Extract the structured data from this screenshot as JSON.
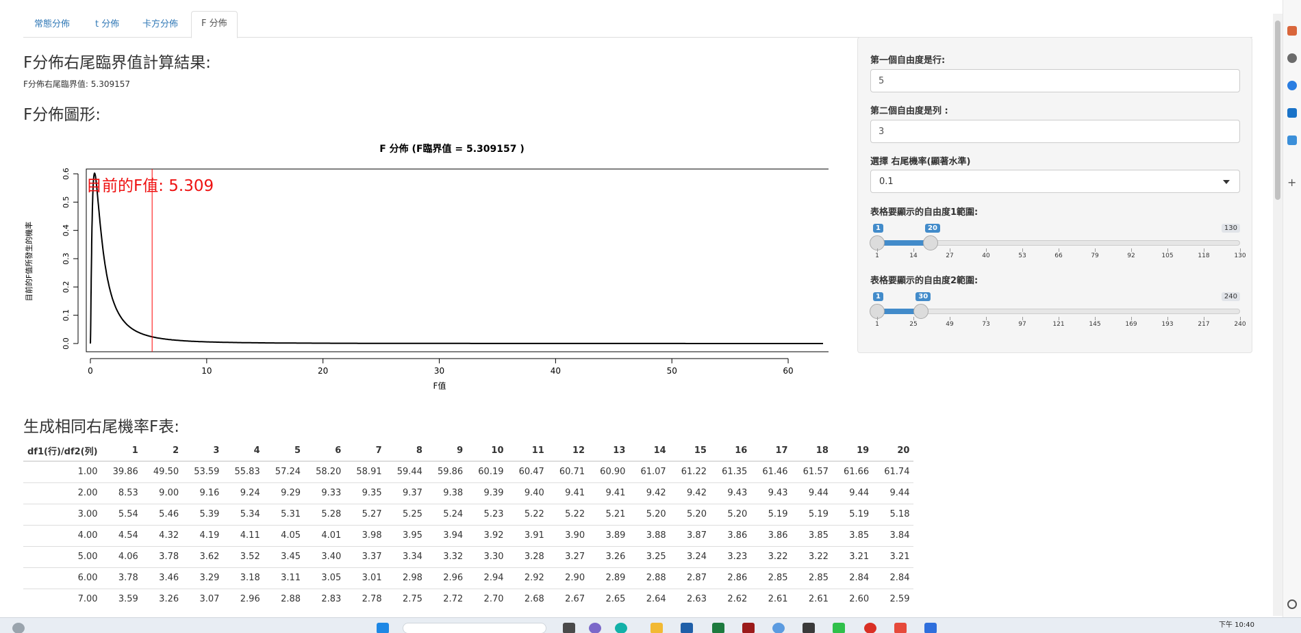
{
  "tabs": [
    {
      "label": "常態分佈"
    },
    {
      "label": "t 分佈"
    },
    {
      "label": "卡方分佈"
    },
    {
      "label": "F 分佈"
    }
  ],
  "result": {
    "heading": "F分佈右尾臨界值計算結果:",
    "text": "F分佈右尾臨界值: 5.309157"
  },
  "plot_heading": "F分佈圖形:",
  "chart_data": {
    "type": "line",
    "title": "F 分佈 (F臨界值 = 5.309157 )",
    "xlabel": "F值",
    "ylabel": "目前的F值所發生的機率",
    "annotation": "目前的F值: 5.309",
    "critical_value": 5.309157,
    "df1": 5,
    "df2": 3,
    "xlim": [
      0,
      63
    ],
    "ylim": [
      0,
      0.6
    ],
    "x_ticks": [
      0,
      10,
      20,
      30,
      40,
      50,
      60
    ],
    "y_ticks": [
      0.0,
      0.1,
      0.2,
      0.3,
      0.4,
      0.5,
      0.6
    ],
    "curve_color": "#000000",
    "critical_line_color": "#ff0000",
    "grid": false
  },
  "table_heading": "生成相同右尾機率F表:",
  "sidebar": {
    "df1_label": "第一個自由度是行:",
    "df1_value": "5",
    "df2_label": "第二個自由度是列 :",
    "df2_value": "3",
    "prob_label": "選擇 右尾機率(顯著水準)",
    "prob_value": "0.1",
    "range1_label": "表格要顯示的自由度1範圍:",
    "range1": {
      "min": 1,
      "max": 130,
      "from": 1,
      "to": 20,
      "ticks": [
        "1",
        "14",
        "27",
        "40",
        "53",
        "66",
        "79",
        "92",
        "105",
        "118",
        "130"
      ]
    },
    "range2_label": "表格要顯示的自由度2範圍:",
    "range2": {
      "min": 1,
      "max": 240,
      "from": 1,
      "to": 30,
      "ticks": [
        "1",
        "25",
        "49",
        "73",
        "97",
        "121",
        "145",
        "169",
        "193",
        "217",
        "240"
      ]
    }
  },
  "table": {
    "corner_header": "df1(行)/df2(列)",
    "col_headers": [
      "1",
      "2",
      "3",
      "4",
      "5",
      "6",
      "7",
      "8",
      "9",
      "10",
      "11",
      "12",
      "13",
      "14",
      "15",
      "16",
      "17",
      "18",
      "19",
      "20"
    ],
    "rows": [
      {
        "label": "1.00",
        "cells": [
          "39.86",
          "49.50",
          "53.59",
          "55.83",
          "57.24",
          "58.20",
          "58.91",
          "59.44",
          "59.86",
          "60.19",
          "60.47",
          "60.71",
          "60.90",
          "61.07",
          "61.22",
          "61.35",
          "61.46",
          "61.57",
          "61.66",
          "61.74"
        ]
      },
      {
        "label": "2.00",
        "cells": [
          "8.53",
          "9.00",
          "9.16",
          "9.24",
          "9.29",
          "9.33",
          "9.35",
          "9.37",
          "9.38",
          "9.39",
          "9.40",
          "9.41",
          "9.41",
          "9.42",
          "9.42",
          "9.43",
          "9.43",
          "9.44",
          "9.44",
          "9.44"
        ]
      },
      {
        "label": "3.00",
        "cells": [
          "5.54",
          "5.46",
          "5.39",
          "5.34",
          "5.31",
          "5.28",
          "5.27",
          "5.25",
          "5.24",
          "5.23",
          "5.22",
          "5.22",
          "5.21",
          "5.20",
          "5.20",
          "5.20",
          "5.19",
          "5.19",
          "5.19",
          "5.18"
        ]
      },
      {
        "label": "4.00",
        "cells": [
          "4.54",
          "4.32",
          "4.19",
          "4.11",
          "4.05",
          "4.01",
          "3.98",
          "3.95",
          "3.94",
          "3.92",
          "3.91",
          "3.90",
          "3.89",
          "3.88",
          "3.87",
          "3.86",
          "3.86",
          "3.85",
          "3.85",
          "3.84"
        ]
      },
      {
        "label": "5.00",
        "cells": [
          "4.06",
          "3.78",
          "3.62",
          "3.52",
          "3.45",
          "3.40",
          "3.37",
          "3.34",
          "3.32",
          "3.30",
          "3.28",
          "3.27",
          "3.26",
          "3.25",
          "3.24",
          "3.23",
          "3.22",
          "3.22",
          "3.21",
          "3.21"
        ]
      },
      {
        "label": "6.00",
        "cells": [
          "3.78",
          "3.46",
          "3.29",
          "3.18",
          "3.11",
          "3.05",
          "3.01",
          "2.98",
          "2.96",
          "2.94",
          "2.92",
          "2.90",
          "2.89",
          "2.88",
          "2.87",
          "2.86",
          "2.85",
          "2.85",
          "2.84",
          "2.84"
        ]
      },
      {
        "label": "7.00",
        "cells": [
          "3.59",
          "3.26",
          "3.07",
          "2.96",
          "2.88",
          "2.83",
          "2.78",
          "2.75",
          "2.72",
          "2.70",
          "2.68",
          "2.67",
          "2.65",
          "2.64",
          "2.63",
          "2.62",
          "2.61",
          "2.61",
          "2.60",
          "2.59"
        ]
      }
    ]
  },
  "taskbar": {
    "clock": "下午 10:40"
  },
  "colors": {
    "link": "#337ab7",
    "slider_accent": "#428bca",
    "annotation_red": "#ee1111"
  }
}
